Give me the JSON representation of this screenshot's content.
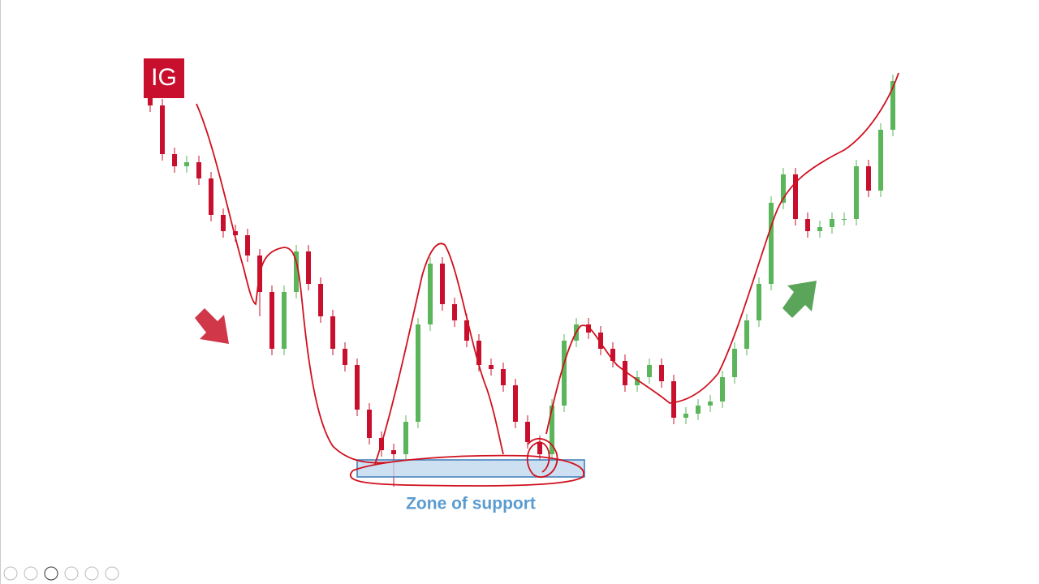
{
  "chart_data": {
    "type": "candlestick",
    "logo": "IG",
    "annotation": "Zone of support",
    "up_color": "#5bb55b",
    "down_color": "#c8102e",
    "open": [
      520,
      510,
      450,
      435,
      440,
      420,
      375,
      355,
      350,
      325,
      280,
      210,
      280,
      330,
      290,
      250,
      210,
      190,
      135,
      100,
      85,
      80,
      120,
      240,
      315,
      265,
      245,
      220,
      190,
      185,
      165,
      120,
      95,
      80,
      140,
      220,
      240,
      230,
      210,
      195,
      165,
      175,
      190,
      170,
      125,
      130,
      140,
      145,
      175,
      210,
      245,
      290,
      390,
      425,
      370,
      355,
      360,
      370,
      370,
      435,
      405,
      480
    ],
    "high": [
      528,
      518,
      458,
      448,
      448,
      428,
      383,
      363,
      358,
      333,
      288,
      288,
      338,
      338,
      298,
      258,
      218,
      198,
      143,
      108,
      93,
      128,
      248,
      323,
      323,
      273,
      253,
      228,
      198,
      193,
      173,
      128,
      103,
      148,
      228,
      248,
      248,
      238,
      218,
      203,
      183,
      198,
      198,
      178,
      138,
      148,
      153,
      183,
      218,
      253,
      298,
      398,
      433,
      433,
      378,
      368,
      378,
      378,
      443,
      443,
      488,
      548
    ],
    "low": [
      502,
      442,
      427,
      427,
      412,
      367,
      347,
      342,
      317,
      250,
      202,
      202,
      272,
      282,
      242,
      202,
      182,
      127,
      92,
      77,
      40,
      72,
      112,
      232,
      257,
      237,
      212,
      182,
      177,
      157,
      112,
      87,
      72,
      72,
      132,
      212,
      222,
      202,
      187,
      157,
      157,
      167,
      162,
      117,
      117,
      122,
      132,
      137,
      167,
      202,
      237,
      282,
      382,
      362,
      347,
      347,
      352,
      362,
      362,
      397,
      397,
      472
    ],
    "close": [
      510,
      450,
      435,
      440,
      420,
      375,
      355,
      350,
      325,
      280,
      210,
      280,
      330,
      290,
      250,
      210,
      190,
      135,
      100,
      85,
      80,
      120,
      240,
      315,
      265,
      245,
      220,
      190,
      185,
      165,
      120,
      95,
      80,
      140,
      220,
      240,
      230,
      210,
      195,
      165,
      175,
      190,
      170,
      125,
      130,
      140,
      145,
      175,
      210,
      245,
      290,
      390,
      425,
      370,
      355,
      360,
      370,
      370,
      435,
      405,
      480,
      540
    ]
  }
}
